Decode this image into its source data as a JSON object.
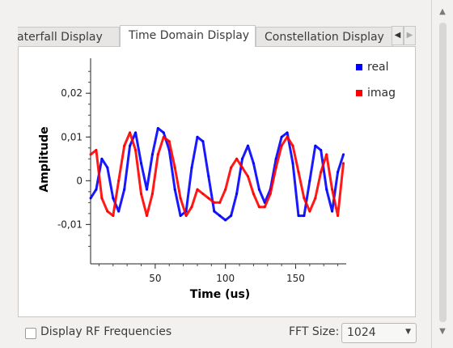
{
  "tabs": [
    {
      "label": "aterfall Display",
      "active": false
    },
    {
      "label": "Time Domain Display",
      "active": true
    },
    {
      "label": "Constellation Display",
      "active": false
    }
  ],
  "tab_scroll": {
    "left_icon": "triangle-left-icon",
    "right_icon": "triangle-right-icon"
  },
  "chart_data": {
    "type": "line",
    "xlabel": "Time (us)",
    "ylabel": "Amplitude",
    "xlim": [
      4,
      186
    ],
    "ylim": [
      -0.019,
      0.028
    ],
    "xticks": [
      50,
      100,
      150
    ],
    "xtick_labels": [
      "50",
      "100",
      "150"
    ],
    "yticks": [
      0.02,
      0.01,
      0,
      -0.01
    ],
    "ytick_labels": [
      "0,02",
      "0,01",
      "0",
      "-0,01"
    ],
    "legend_position": "right",
    "series": [
      {
        "name": "real",
        "color": "#0000ff",
        "x": [
          4,
          8,
          12,
          16,
          20,
          24,
          28,
          32,
          36,
          40,
          44,
          48,
          52,
          56,
          60,
          64,
          68,
          72,
          76,
          80,
          84,
          88,
          92,
          96,
          100,
          104,
          108,
          112,
          116,
          120,
          124,
          128,
          132,
          136,
          140,
          144,
          148,
          152,
          156,
          160,
          164,
          168,
          172,
          176,
          180,
          184
        ],
        "y": [
          -0.004,
          -0.002,
          0.005,
          0.003,
          -0.004,
          -0.007,
          -0.002,
          0.008,
          0.011,
          0.004,
          -0.002,
          0.006,
          0.012,
          0.011,
          0.007,
          -0.002,
          -0.008,
          -0.007,
          0.003,
          0.01,
          0.009,
          0.001,
          -0.007,
          -0.008,
          -0.009,
          -0.008,
          -0.003,
          0.005,
          0.008,
          0.004,
          -0.002,
          -0.005,
          -0.002,
          0.005,
          0.01,
          0.011,
          0.004,
          -0.008,
          -0.008,
          0.0,
          0.008,
          0.007,
          -0.002,
          -0.007,
          0.002,
          0.006
        ]
      },
      {
        "name": "imag",
        "color": "#ff0000",
        "x": [
          4,
          8,
          12,
          16,
          20,
          24,
          28,
          32,
          36,
          40,
          44,
          48,
          52,
          56,
          60,
          64,
          68,
          72,
          76,
          80,
          84,
          88,
          92,
          96,
          100,
          104,
          108,
          112,
          116,
          120,
          124,
          128,
          132,
          136,
          140,
          144,
          148,
          152,
          156,
          160,
          164,
          168,
          172,
          176,
          180,
          184
        ],
        "y": [
          0.006,
          0.007,
          -0.004,
          -0.007,
          -0.008,
          0.0,
          0.008,
          0.011,
          0.007,
          -0.003,
          -0.008,
          -0.003,
          0.006,
          0.01,
          0.009,
          0.003,
          -0.004,
          -0.008,
          -0.006,
          -0.002,
          -0.003,
          -0.004,
          -0.005,
          -0.005,
          -0.002,
          0.003,
          0.005,
          0.003,
          0.001,
          -0.003,
          -0.006,
          -0.006,
          -0.003,
          0.003,
          0.008,
          0.01,
          0.008,
          0.002,
          -0.004,
          -0.007,
          -0.004,
          0.002,
          0.006,
          -0.002,
          -0.008,
          0.004
        ]
      }
    ]
  },
  "bottom": {
    "rf_checkbox_label": "Display RF Frequencies",
    "rf_checked": false,
    "fft_label": "FFT Size:",
    "fft_value": "1024"
  }
}
